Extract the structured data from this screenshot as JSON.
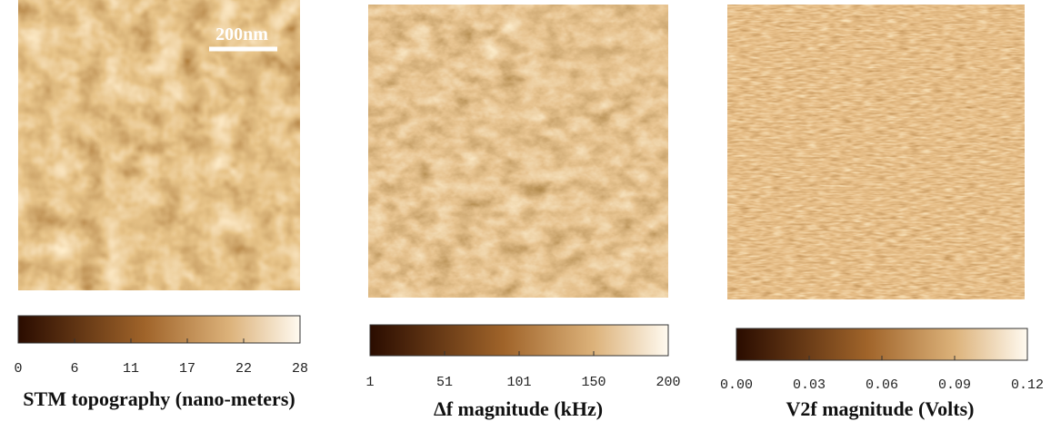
{
  "panels": [
    {
      "scale_bar": "200nm",
      "ticks": [
        "0",
        "6",
        "11",
        "17",
        "22",
        "28"
      ],
      "caption": "STM topography (nano-meters)"
    },
    {
      "ticks": [
        "1",
        "51",
        "101",
        "150",
        "200"
      ],
      "caption": "Δf magnitude (kHz)"
    },
    {
      "ticks": [
        "0.00",
        "0.03",
        "0.06",
        "0.09",
        "0.12"
      ],
      "caption": "V2f magnitude (Volts)"
    }
  ]
}
